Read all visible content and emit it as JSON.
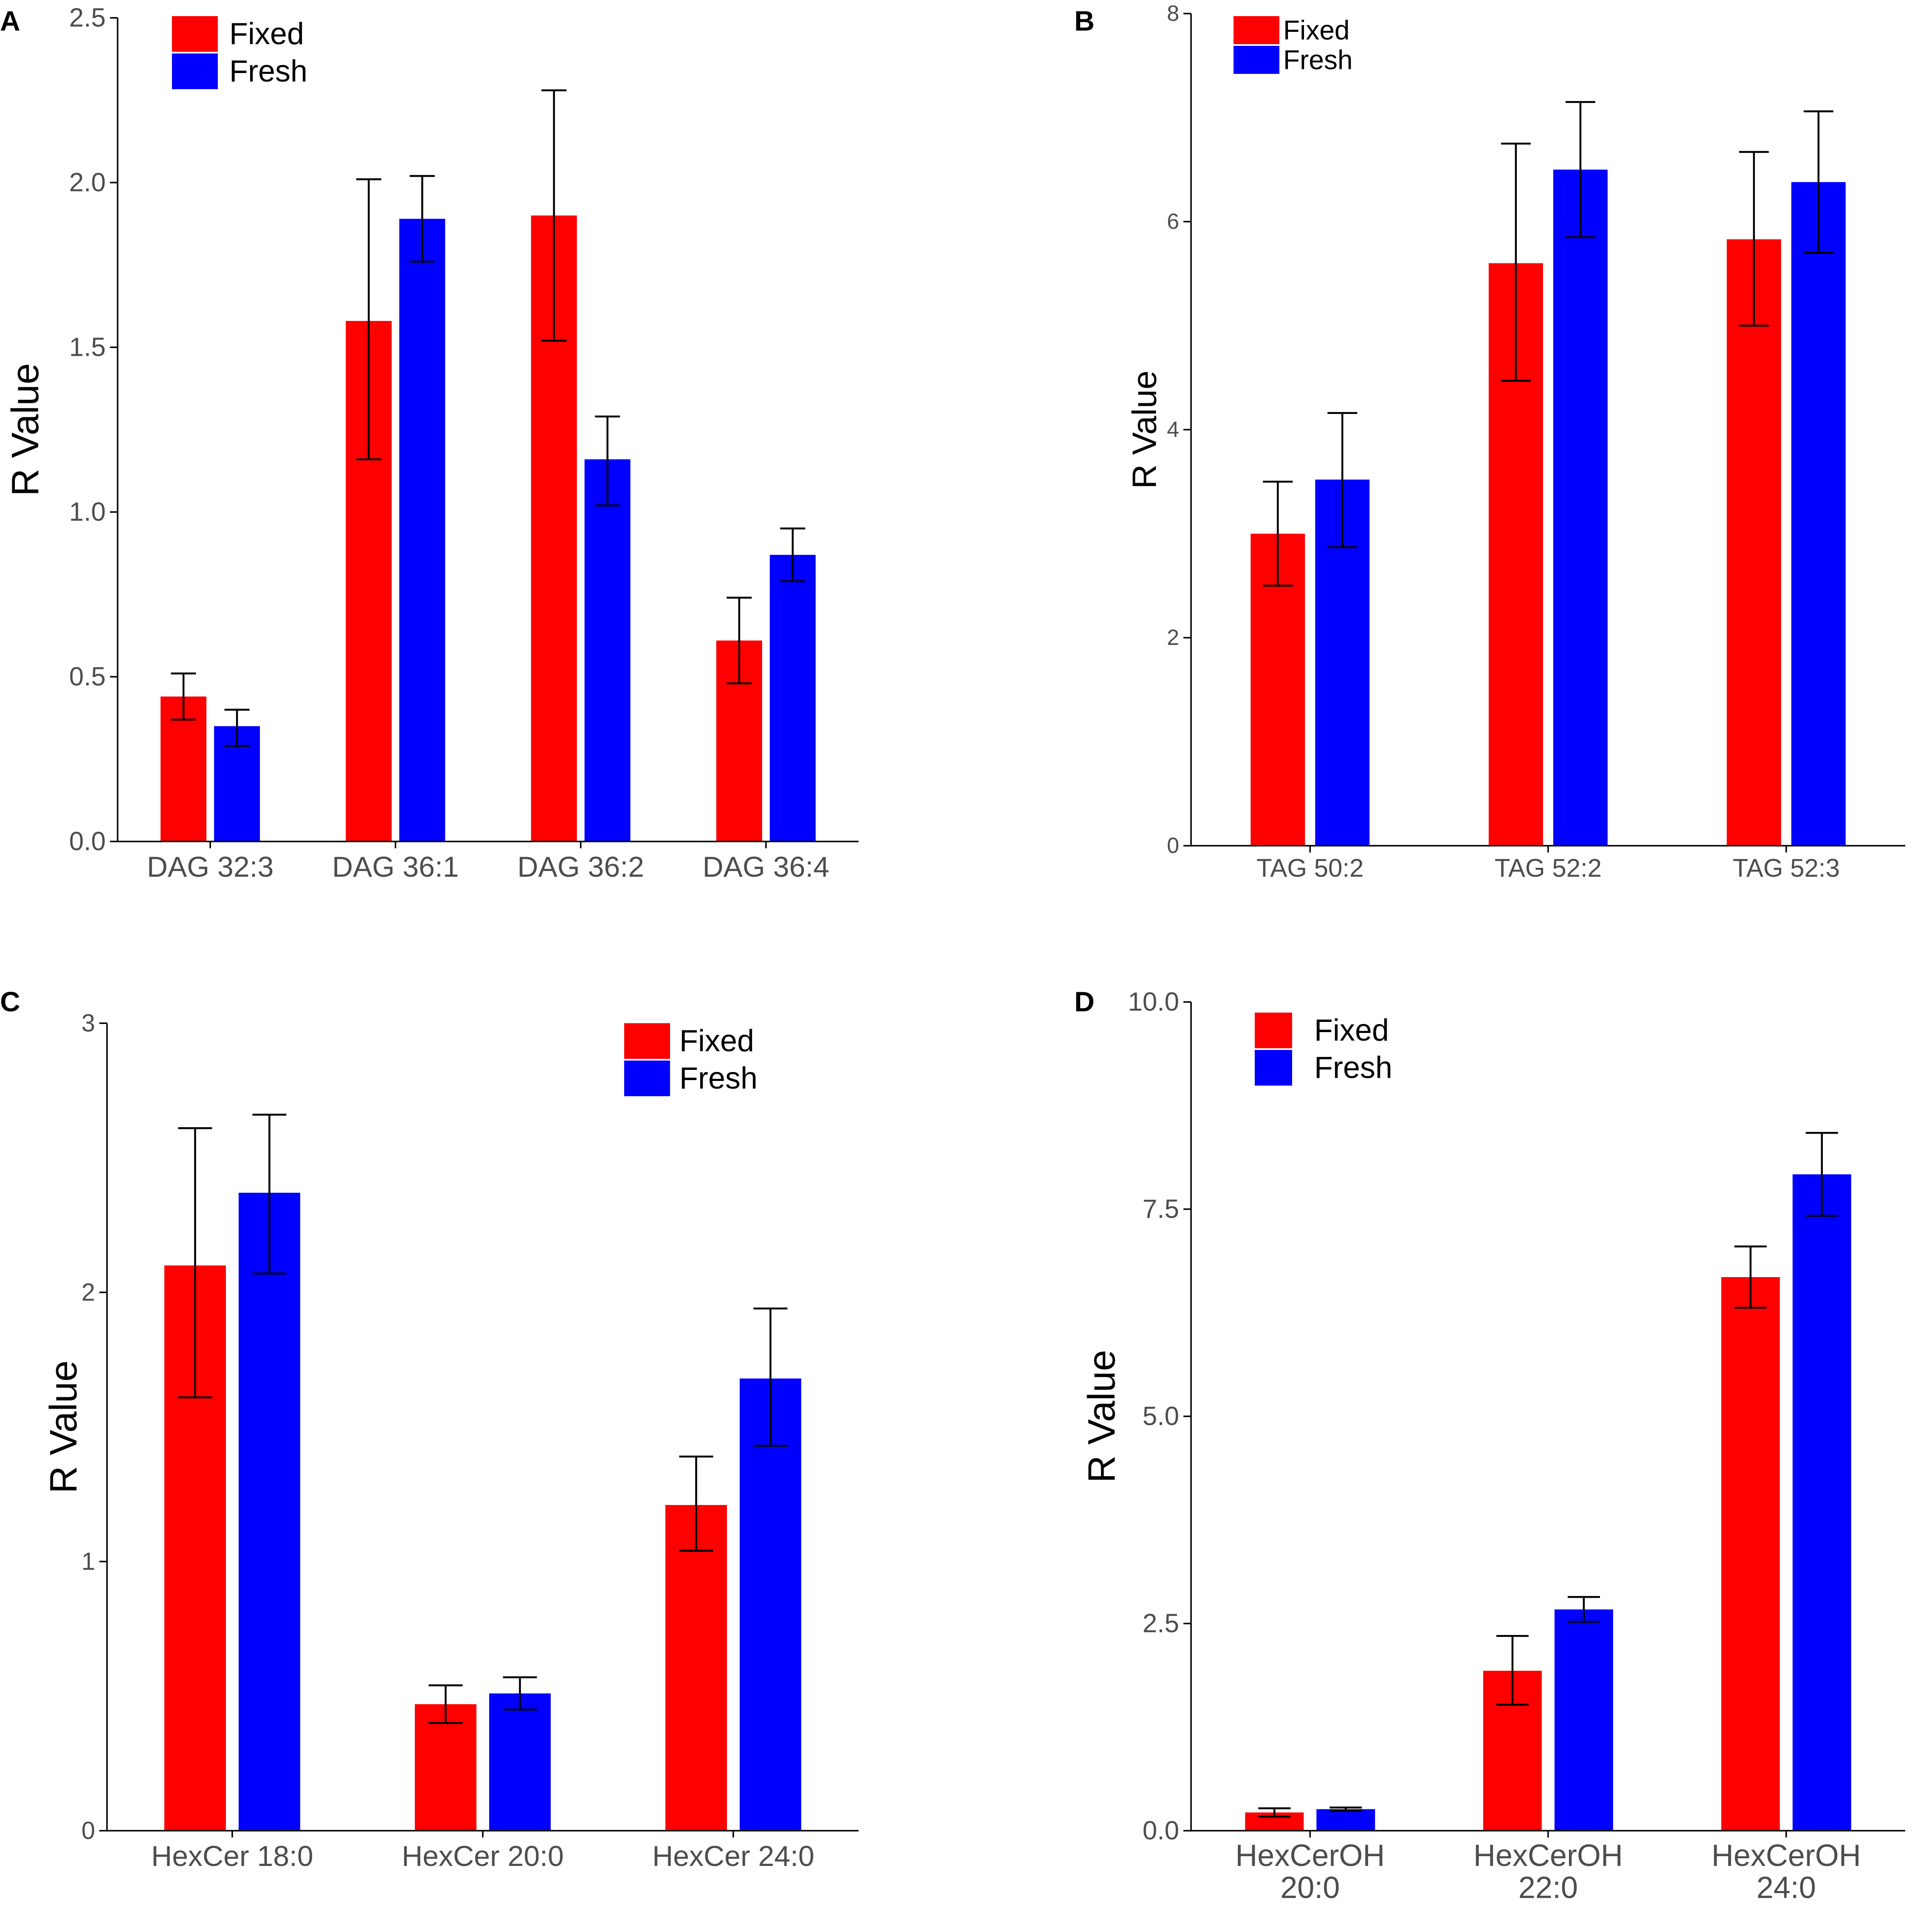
{
  "colors": {
    "Fixed": "#ff0000",
    "Fresh": "#0000ff"
  },
  "chart_data": [
    {
      "panel": "A",
      "type": "bar",
      "ylabel": "R Value",
      "ylim": [
        0,
        2.5
      ],
      "yticks": [
        "0.0",
        "0.5",
        "1.0",
        "1.5",
        "2.0",
        "2.5"
      ],
      "legend": [
        "Fixed",
        "Fresh"
      ],
      "legend_position": "top-left",
      "categories": [
        [
          "DAG 32:3"
        ],
        [
          "DAG 36:1"
        ],
        [
          "DAG 36:2"
        ],
        [
          "DAG 36:4"
        ]
      ],
      "series": [
        {
          "name": "Fixed",
          "values": [
            0.44,
            1.58,
            1.9,
            0.61
          ],
          "err_low": [
            0.37,
            1.16,
            1.52,
            0.48
          ],
          "err_high": [
            0.51,
            2.01,
            2.28,
            0.74
          ]
        },
        {
          "name": "Fresh",
          "values": [
            0.35,
            1.89,
            1.16,
            0.87
          ],
          "err_low": [
            0.29,
            1.76,
            1.02,
            0.79
          ],
          "err_high": [
            0.4,
            2.02,
            1.29,
            0.95
          ]
        }
      ]
    },
    {
      "panel": "B",
      "type": "bar",
      "ylabel": "R Value",
      "ylim": [
        0,
        8
      ],
      "yticks": [
        "0",
        "2",
        "4",
        "6",
        "8"
      ],
      "legend": [
        "Fixed",
        "Fresh"
      ],
      "legend_position": "top-left",
      "categories": [
        [
          "TAG 50:2"
        ],
        [
          "TAG 52:2"
        ],
        [
          "TAG 52:3"
        ]
      ],
      "series": [
        {
          "name": "Fixed",
          "values": [
            3.0,
            5.6,
            5.83
          ],
          "err_low": [
            2.5,
            4.47,
            5.0
          ],
          "err_high": [
            3.5,
            6.75,
            6.67
          ]
        },
        {
          "name": "Fresh",
          "values": [
            3.52,
            6.5,
            6.38
          ],
          "err_low": [
            2.87,
            5.85,
            5.7
          ],
          "err_high": [
            4.16,
            7.15,
            7.06
          ]
        }
      ]
    },
    {
      "panel": "C",
      "type": "bar",
      "ylabel": "R Value",
      "ylim": [
        0,
        3
      ],
      "yticks": [
        "0",
        "1",
        "2",
        "3"
      ],
      "legend": [
        "Fixed",
        "Fresh"
      ],
      "legend_position": "top-right",
      "categories": [
        [
          "HexCer 18:0"
        ],
        [
          "HexCer 20:0"
        ],
        [
          "HexCer 24:0"
        ]
      ],
      "series": [
        {
          "name": "Fixed",
          "values": [
            2.1,
            0.47,
            1.21
          ],
          "err_low": [
            1.61,
            0.4,
            1.04
          ],
          "err_high": [
            2.61,
            0.54,
            1.39
          ]
        },
        {
          "name": "Fresh",
          "values": [
            2.37,
            0.51,
            1.68
          ],
          "err_low": [
            2.07,
            0.45,
            1.43
          ],
          "err_high": [
            2.66,
            0.57,
            1.94
          ]
        }
      ]
    },
    {
      "panel": "D",
      "type": "bar",
      "ylabel": "R Value",
      "ylim": [
        0,
        10
      ],
      "yticks": [
        "0.0",
        "2.5",
        "5.0",
        "7.5",
        "10.0"
      ],
      "legend": [
        "Fixed",
        "Fresh"
      ],
      "legend_position": "top-left",
      "categories": [
        [
          "HexCerOH",
          "20:0"
        ],
        [
          "HexCerOH",
          "22:0"
        ],
        [
          "HexCerOH",
          "24:0"
        ]
      ],
      "series": [
        {
          "name": "Fixed",
          "values": [
            0.22,
            1.93,
            6.68
          ],
          "err_low": [
            0.17,
            1.52,
            6.31
          ],
          "err_high": [
            0.27,
            2.35,
            7.05
          ]
        },
        {
          "name": "Fresh",
          "values": [
            0.26,
            2.67,
            7.92
          ],
          "err_low": [
            0.24,
            2.52,
            7.42
          ],
          "err_high": [
            0.28,
            2.82,
            8.42
          ]
        }
      ]
    }
  ]
}
